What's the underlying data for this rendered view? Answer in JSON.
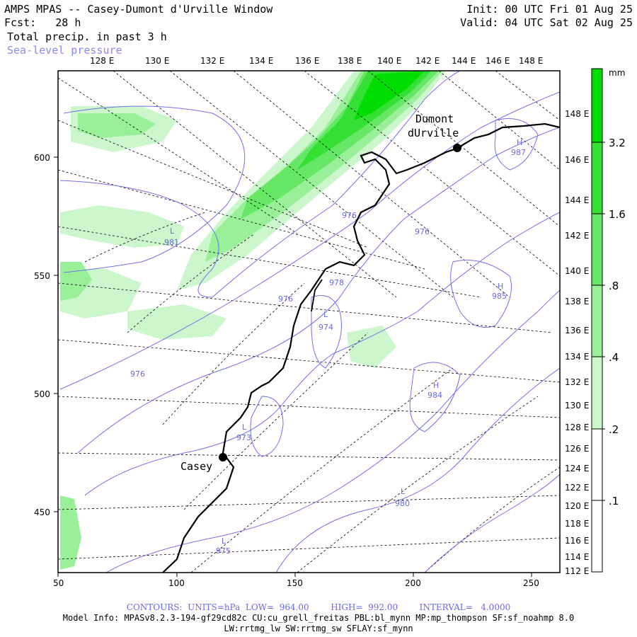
{
  "header": {
    "title": "AMPS MPAS -- Casey-Dumont d'Urville Window",
    "fcst": "Fcst:   28 h",
    "field1": "Total precip. in past 3 h",
    "field2": "Sea-level pressure",
    "init": "Init: 00 UTC Fri 01 Aug 25",
    "valid": "Valid: 04 UTC Sat 02 Aug 25"
  },
  "map": {
    "top_lon_labels": [
      "128 E",
      "130 E",
      "132 E",
      "134 E",
      "136 E",
      "138 E",
      "140 E",
      "142 E",
      "144 E",
      "146 E",
      "148 E"
    ],
    "right_lat_labels": [
      "148 E",
      "146 E",
      "144 E",
      "142 E",
      "140 E",
      "138 E",
      "136 E",
      "134 E",
      "132 E",
      "130 E",
      "128 E",
      "126 E",
      "124 E",
      "122 E",
      "120 E",
      "118 E",
      "116 E",
      "114 E",
      "112 E"
    ],
    "x_ticks": [
      "50",
      "100",
      "150",
      "200",
      "250"
    ],
    "y_ticks": [
      "600",
      "550",
      "500",
      "450"
    ],
    "stations": [
      {
        "name": "Casey"
      },
      {
        "name_line1": "Dumont",
        "name_line2": "dUrville"
      }
    ],
    "pressure_labels": [
      {
        "type": "H",
        "value": "987"
      },
      {
        "type": "L",
        "value": "981"
      },
      {
        "type": "",
        "value": "976"
      },
      {
        "type": "",
        "value": "976"
      },
      {
        "type": "",
        "value": "976"
      },
      {
        "type": "",
        "value": "976"
      },
      {
        "type": "",
        "value": "978"
      },
      {
        "type": "L",
        "value": "974"
      },
      {
        "type": "H",
        "value": "985"
      },
      {
        "type": "H",
        "value": "984"
      },
      {
        "type": "L",
        "value": "973"
      },
      {
        "type": "L",
        "value": "980"
      },
      {
        "type": "L",
        "value": "975"
      }
    ]
  },
  "colorbar": {
    "unit": "mm",
    "labels": [
      "3.2",
      "1.6",
      ".8",
      ".4",
      ".2",
      ".1"
    ],
    "colors": [
      "#00dd00",
      "#33e033",
      "#66e866",
      "#99f099",
      "#ccf7cc",
      "#ffffff"
    ]
  },
  "footer": {
    "contours": "CONTOURS:  UNITS=hPa  LOW=  964.00        HIGH=  992.00        INTERVAL=   4.0000",
    "model_info": "Model Info: MPASv8.2.3-194-gf29cd82c CU:cu_grell_freitas PBL:bl_mynn MP:mp_thompson SF:sf_noahmp 8.0",
    "model_info2": "LW:rrtmg_lw SW:rrtmg_sw SFLAY:sf_mynn"
  }
}
